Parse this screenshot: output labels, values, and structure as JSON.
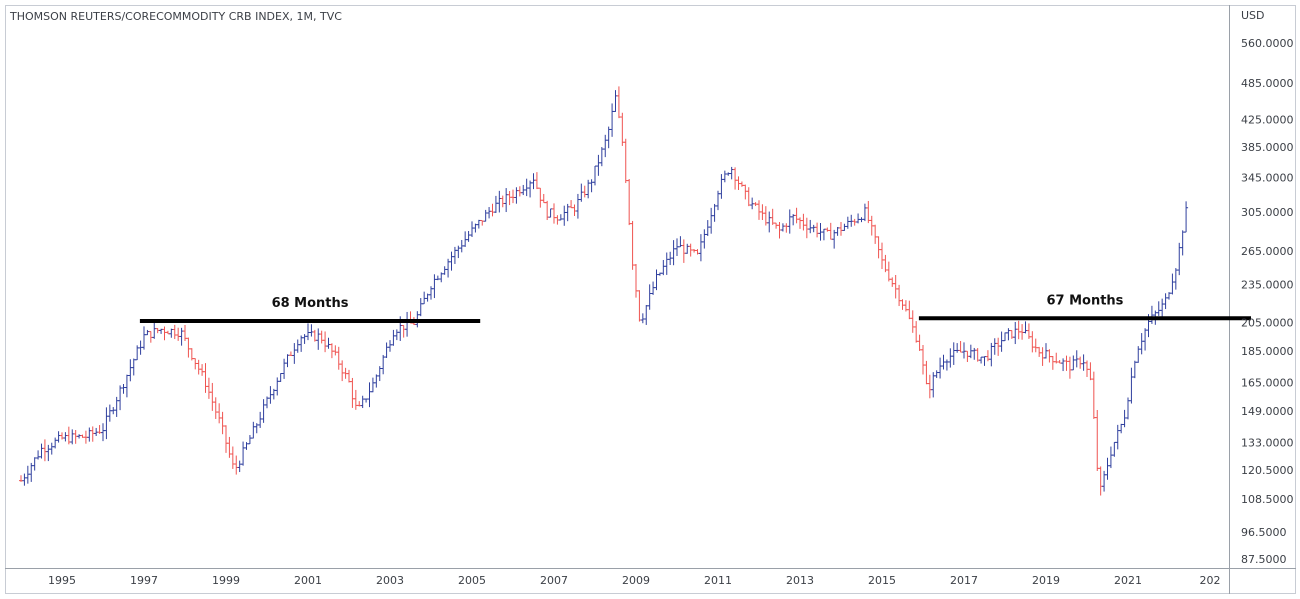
{
  "chart_data": {
    "type": "ohlc",
    "title": "THOMSON REUTERS/CORECOMMODITY CRB INDEX, 1M, TVC",
    "currency_label": "USD",
    "log_scale": true,
    "grid": false,
    "colors": {
      "up": "#2f3f9e",
      "down": "#ef5350",
      "line": "#000000"
    },
    "x_ticks": [
      "1995",
      "1997",
      "1999",
      "2001",
      "2003",
      "2005",
      "2007",
      "2009",
      "2011",
      "2013",
      "2015",
      "2017",
      "2019",
      "2021",
      "202"
    ],
    "y_ticks": [
      "560.0000",
      "485.0000",
      "425.0000",
      "385.0000",
      "345.0000",
      "305.0000",
      "265.0000",
      "235.0000",
      "205.0000",
      "185.0000",
      "165.0000",
      "149.0000",
      "133.0000",
      "120.5000",
      "108.5000",
      "96.5000",
      "87.5000"
    ],
    "anchors": [
      [
        1994.0,
        116
      ],
      [
        1994.5,
        130
      ],
      [
        1995.0,
        135
      ],
      [
        1995.6,
        136
      ],
      [
        1996.0,
        140
      ],
      [
        1996.5,
        165
      ],
      [
        1997.0,
        195
      ],
      [
        1997.4,
        200
      ],
      [
        1997.9,
        198
      ],
      [
        1998.5,
        165
      ],
      [
        1998.9,
        140
      ],
      [
        1999.2,
        120
      ],
      [
        1999.7,
        140
      ],
      [
        2000.3,
        170
      ],
      [
        2000.8,
        195
      ],
      [
        2001.3,
        195
      ],
      [
        2001.7,
        180
      ],
      [
        2002.0,
        165
      ],
      [
        2002.2,
        148
      ],
      [
        2002.6,
        165
      ],
      [
        2003.1,
        200
      ],
      [
        2003.6,
        205
      ],
      [
        2004.0,
        235
      ],
      [
        2004.5,
        260
      ],
      [
        2005.0,
        285
      ],
      [
        2005.5,
        310
      ],
      [
        2006.0,
        325
      ],
      [
        2006.5,
        345
      ],
      [
        2006.8,
        305
      ],
      [
        2007.1,
        300
      ],
      [
        2007.5,
        310
      ],
      [
        2007.9,
        340
      ],
      [
        2008.3,
        400
      ],
      [
        2008.5,
        460
      ],
      [
        2008.7,
        380
      ],
      [
        2008.9,
        260
      ],
      [
        2009.1,
        205
      ],
      [
        2009.5,
        240
      ],
      [
        2010.0,
        270
      ],
      [
        2010.5,
        260
      ],
      [
        2011.0,
        330
      ],
      [
        2011.3,
        360
      ],
      [
        2011.7,
        320
      ],
      [
        2012.1,
        300
      ],
      [
        2012.5,
        285
      ],
      [
        2012.8,
        300
      ],
      [
        2013.2,
        290
      ],
      [
        2013.7,
        280
      ],
      [
        2014.1,
        290
      ],
      [
        2014.6,
        305
      ],
      [
        2015.0,
        255
      ],
      [
        2015.5,
        220
      ],
      [
        2015.9,
        190
      ],
      [
        2016.1,
        160
      ],
      [
        2016.5,
        180
      ],
      [
        2017.0,
        185
      ],
      [
        2017.5,
        180
      ],
      [
        2018.0,
        195
      ],
      [
        2018.4,
        200
      ],
      [
        2018.8,
        185
      ],
      [
        2019.2,
        180
      ],
      [
        2019.6,
        175
      ],
      [
        2019.9,
        180
      ],
      [
        2020.1,
        165
      ],
      [
        2020.3,
        110
      ],
      [
        2020.6,
        130
      ],
      [
        2020.9,
        145
      ],
      [
        2021.2,
        185
      ],
      [
        2021.5,
        205
      ],
      [
        2021.9,
        220
      ],
      [
        2022.2,
        255
      ],
      [
        2022.4,
        305
      ]
    ],
    "annotations": [
      {
        "text": "68 Months",
        "x1": 1996.9,
        "x2": 2005.2,
        "y": 206
      },
      {
        "text": "67 Months",
        "x1": 2015.9,
        "x2": 2024.0,
        "y": 208
      }
    ]
  }
}
